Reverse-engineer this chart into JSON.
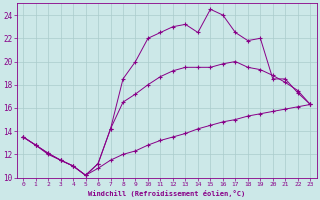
{
  "xlabel": "Windchill (Refroidissement éolien,°C)",
  "background_color": "#cce8e8",
  "grid_color": "#aacccc",
  "line_color": "#880088",
  "xlim": [
    -0.5,
    23.5
  ],
  "ylim": [
    10,
    25
  ],
  "yticks": [
    10,
    12,
    14,
    16,
    18,
    20,
    22,
    24
  ],
  "xticks": [
    0,
    1,
    2,
    3,
    4,
    5,
    6,
    7,
    8,
    9,
    10,
    11,
    12,
    13,
    14,
    15,
    16,
    17,
    18,
    19,
    20,
    21,
    22,
    23
  ],
  "series1_x": [
    0,
    1,
    2,
    3,
    4,
    5,
    6,
    7,
    8,
    9,
    10,
    11,
    12,
    13,
    14,
    15,
    16,
    17,
    18,
    19,
    20,
    21,
    22,
    23
  ],
  "series1_y": [
    13.5,
    12.8,
    12.0,
    11.5,
    11.0,
    10.2,
    10.8,
    11.5,
    12.0,
    12.3,
    12.8,
    13.2,
    13.5,
    13.8,
    14.2,
    14.5,
    14.8,
    15.0,
    15.3,
    15.5,
    15.7,
    15.9,
    16.1,
    16.3
  ],
  "series2_x": [
    0,
    1,
    2,
    3,
    4,
    5,
    6,
    7,
    8,
    9,
    10,
    11,
    12,
    13,
    14,
    15,
    16,
    17,
    18,
    19,
    20,
    21,
    22,
    23
  ],
  "series2_y": [
    13.5,
    12.8,
    12.1,
    11.5,
    11.0,
    10.2,
    11.2,
    14.2,
    16.5,
    17.2,
    18.0,
    18.7,
    19.2,
    19.5,
    19.5,
    19.5,
    19.8,
    20.0,
    19.5,
    19.3,
    18.8,
    18.2,
    17.5,
    16.3
  ],
  "series3_x": [
    0,
    1,
    2,
    3,
    4,
    5,
    6,
    7,
    8,
    9,
    10,
    11,
    12,
    13,
    14,
    15,
    16,
    17,
    18,
    19,
    20,
    21,
    22,
    23
  ],
  "series3_y": [
    13.5,
    12.8,
    12.1,
    11.5,
    11.0,
    10.2,
    11.2,
    14.2,
    18.5,
    20.0,
    22.0,
    22.5,
    23.0,
    23.2,
    22.5,
    24.5,
    24.0,
    22.5,
    21.8,
    22.0,
    18.5,
    18.5,
    17.3,
    16.3
  ]
}
